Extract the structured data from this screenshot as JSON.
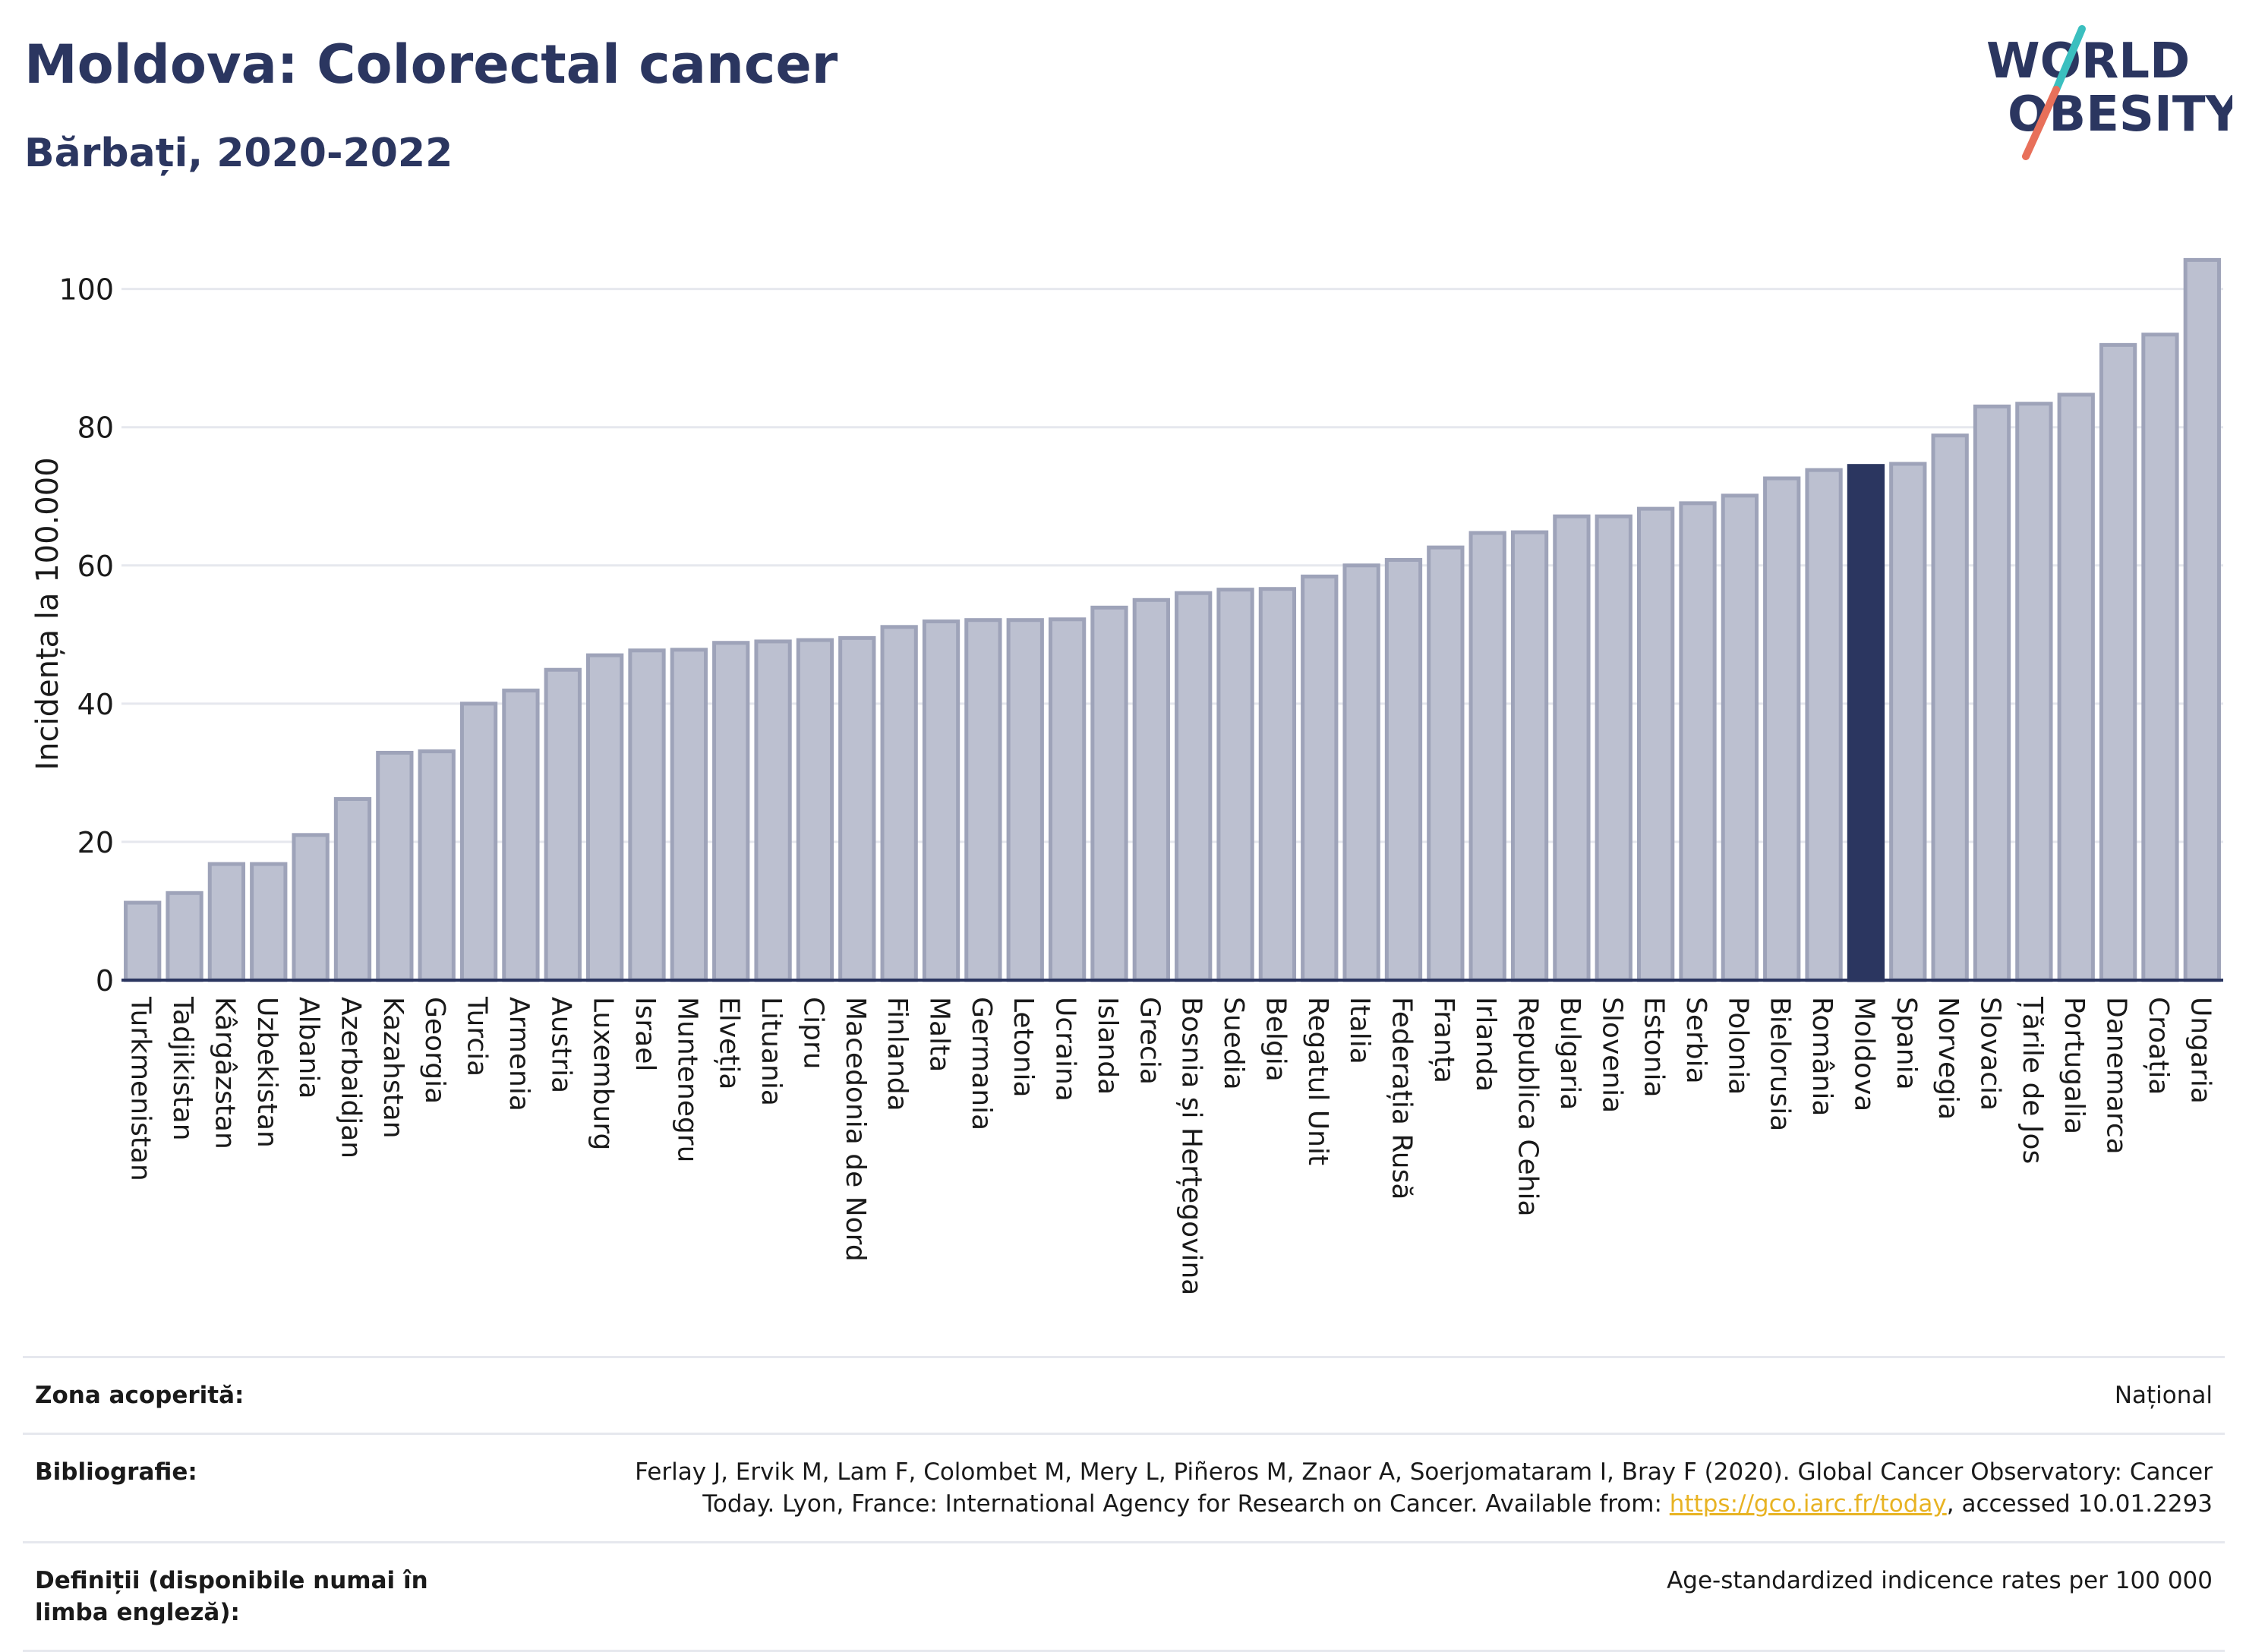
{
  "title": "Moldova: Colorectal cancer",
  "subtitle": "Bărbați, 2020-2022",
  "logo": {
    "line1": "WORLD",
    "line2": "OBESITY",
    "text_color": "#2b3660",
    "slash_colors": [
      "#e8705a",
      "#3bbfbf"
    ]
  },
  "colors": {
    "bar": "#bcc0d0",
    "bar_stroke": "#9ea3b9",
    "highlight": "#2b3660",
    "grid": "#e6e8ee",
    "text": "#2b3660"
  },
  "chart_data": {
    "type": "bar",
    "ylabel": "Incidența la 100.000",
    "ylim": [
      0,
      106
    ],
    "yticks": [
      0,
      20,
      40,
      60,
      80,
      100
    ],
    "grid": true,
    "highlight": "Moldova",
    "categories": [
      "Turkmenistan",
      "Tadjikistan",
      "Kârgâzstan",
      "Uzbekistan",
      "Albania",
      "Azerbaidjan",
      "Kazahstan",
      "Georgia",
      "Turcia",
      "Armenia",
      "Austria",
      "Luxemburg",
      "Israel",
      "Muntenegru",
      "Elveția",
      "Lituania",
      "Cipru",
      "Macedonia de Nord",
      "Finlanda",
      "Malta",
      "Germania",
      "Letonia",
      "Ucraina",
      "Islanda",
      "Grecia",
      "Bosnia și Herțegovina",
      "Suedia",
      "Belgia",
      "Regatul Unit",
      "Italia",
      "Federația Rusă",
      "Franța",
      "Irlanda",
      "Republica Cehia",
      "Bulgaria",
      "Slovenia",
      "Estonia",
      "Serbia",
      "Polonia",
      "Bielorusia",
      "România",
      "Moldova",
      "Spania",
      "Norvegia",
      "Slovacia",
      "Țările de Jos",
      "Portugalia",
      "Danemarca",
      "Croația",
      "Ungaria"
    ],
    "values": [
      11.2,
      12.6,
      16.8,
      16.8,
      21.0,
      26.2,
      32.9,
      33.1,
      40.0,
      41.9,
      44.9,
      47.0,
      47.7,
      47.8,
      48.8,
      49.0,
      49.2,
      49.5,
      51.1,
      51.9,
      52.1,
      52.1,
      52.2,
      53.9,
      55.0,
      56.0,
      56.5,
      56.6,
      58.4,
      60.0,
      60.8,
      62.6,
      64.7,
      64.8,
      67.1,
      67.1,
      68.2,
      69.0,
      70.1,
      72.6,
      73.8,
      74.4,
      74.7,
      78.8,
      83.0,
      83.4,
      84.7,
      91.9,
      93.4,
      104.2
    ]
  },
  "meta": {
    "zona_label": "Zona acoperită:",
    "zona_value": "Național",
    "biblio_label": "Bibliografie:",
    "biblio_text_1": "Ferlay J, Ervik M, Lam F, Colombet M, Mery L, Piñeros M, Znaor A, Soerjomataram I, Bray F (2020). Global Cancer Observatory: Cancer Today. Lyon, France: International Agency for Research on Cancer. Available from: ",
    "biblio_link": "https://gco.iarc.fr/today",
    "biblio_text_2": ", accessed 10.01.2293",
    "def_label": "Definiții (disponibile numai în limba engleză):",
    "def_value": "Age-standardized indicence rates per 100 000"
  }
}
